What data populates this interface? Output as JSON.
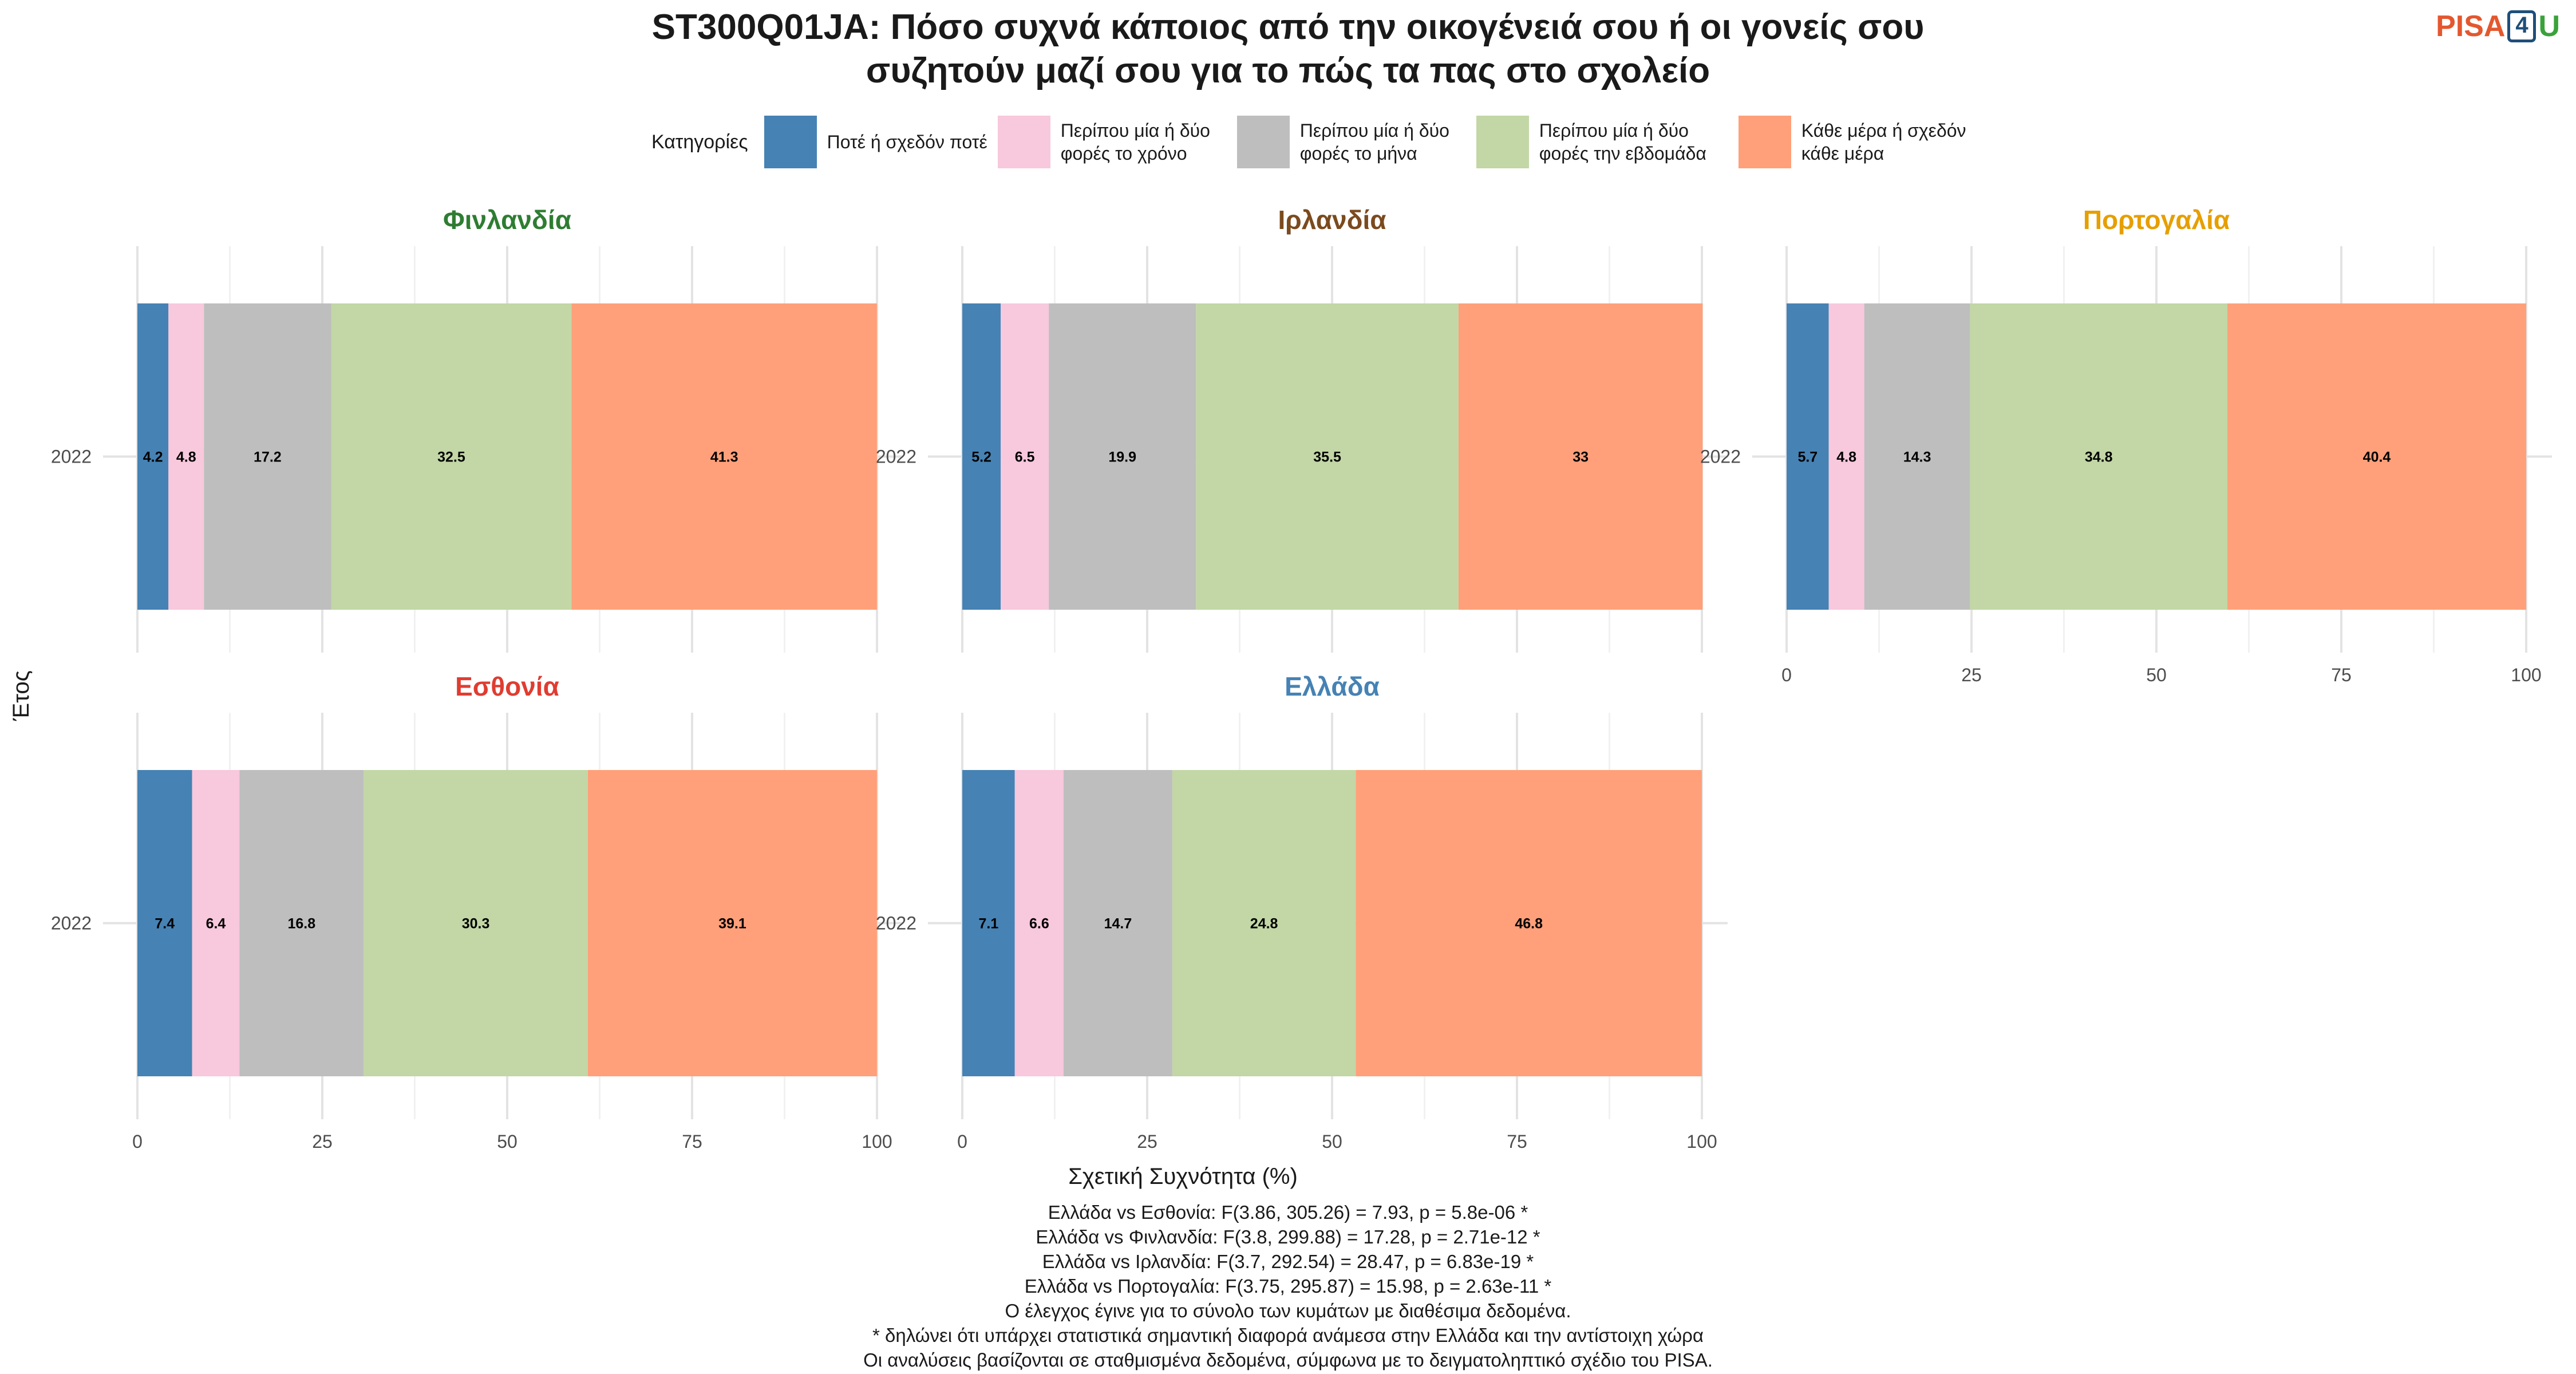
{
  "title_line1": "ST300Q01JA: Πόσο συχνά κάποιος από την οικογένειά σου ή οι γονείς σου",
  "title_line2": "συζητούν μαζί σου για το πώς τα πας στο σχολείο",
  "logo": {
    "part1": "PISA",
    "digit": "4",
    "part2": "U"
  },
  "legend": {
    "title": "Κατηγορίες",
    "items": [
      {
        "label": "Ποτέ ή σχεδόν ποτέ",
        "color": "#4682b4"
      },
      {
        "label": "Περίπου μία ή δύο φορές το χρόνο",
        "color": "#f8c8dc"
      },
      {
        "label": "Περίπου μία ή δύο φορές το μήνα",
        "color": "#bebebe"
      },
      {
        "label": "Περίπου μία ή δύο φορές την εβδομάδα",
        "color": "#c2d7a5"
      },
      {
        "label": "Κάθε μέρα ή σχεδόν κάθε μέρα",
        "color": "#ffa07a"
      }
    ]
  },
  "chart_data": {
    "type": "bar",
    "orientation": "horizontal",
    "stacked": true,
    "xlabel": "Σχετική Συχνότητα (%)",
    "ylabel": "Έτος",
    "xlim": [
      0,
      100
    ],
    "xticks": [
      0,
      25,
      50,
      75,
      100
    ],
    "categories": [
      "Ποτέ ή σχεδόν ποτέ",
      "Περίπου μία ή δύο φορές το χρόνο",
      "Περίπου μία ή δύο φορές το μήνα",
      "Περίπου μία ή δύο φορές την εβδομάδα",
      "Κάθε μέρα ή σχεδόν κάθε μέρα"
    ],
    "colors": [
      "#4682b4",
      "#f8c8dc",
      "#bebebe",
      "#c2d7a5",
      "#ffa07a"
    ],
    "panels": [
      {
        "country": "Φινλανδία",
        "title_color": "#2e7d32",
        "year": "2022",
        "values": [
          4.2,
          4.8,
          17.2,
          32.5,
          41.3
        ]
      },
      {
        "country": "Ιρλανδία",
        "title_color": "#7b4a1e",
        "year": "2022",
        "values": [
          5.2,
          6.5,
          19.9,
          35.5,
          33
        ]
      },
      {
        "country": "Πορτογαλία",
        "title_color": "#e69f00",
        "year": "2022",
        "values": [
          5.7,
          4.8,
          14.3,
          34.8,
          40.4
        ]
      },
      {
        "country": "Εσθονία",
        "title_color": "#e03c31",
        "year": "2022",
        "values": [
          7.4,
          6.4,
          16.8,
          30.3,
          39.1
        ]
      },
      {
        "country": "Ελλάδα",
        "title_color": "#4682b4",
        "year": "2022",
        "values": [
          7.1,
          6.6,
          14.7,
          24.8,
          46.8
        ]
      }
    ]
  },
  "footer": [
    "Ελλάδα vs Εσθονία: F(3.86, 305.26) = 7.93, p = 5.8e-06 *",
    "Ελλάδα vs Φινλανδία: F(3.8, 299.88) = 17.28, p = 2.71e-12 *",
    "Ελλάδα vs Ιρλανδία: F(3.7, 292.54) = 28.47, p = 6.83e-19 *",
    "Ελλάδα vs Πορτογαλία: F(3.75, 295.87) = 15.98, p = 2.63e-11 *",
    "Ο έλεγχος έγινε για το σύνολο των κυμάτων με διαθέσιμα δεδομένα.",
    "* δηλώνει ότι υπάρχει στατιστικά σημαντική διαφορά ανάμεσα στην Ελλάδα και την αντίστοιχη χώρα",
    "Οι αναλύσεις βασίζονται σε σταθμισμένα δεδομένα, σύμφωνα με το δειγματοληπτικό σχέδιο του PISA."
  ]
}
